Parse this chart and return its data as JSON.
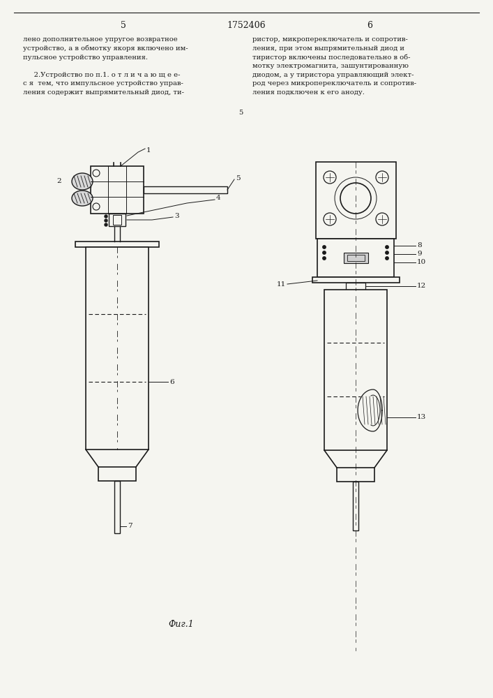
{
  "page_num_left": "5",
  "patent_num": "1752406",
  "page_num_right": "6",
  "text_left": "лено дополнительное упругое возвратное\nустройство, а в обмотку якоря включено им-\nпульсное устройство управления.\n\n     2.Устройство по п.1. о т л и ч а ю щ е е-\nс я  тем, что импульсное устройство управ-\nления содержит выпрямительный диод, ти-",
  "text_right": "ристор, микропереключатель и сопротив-\nления, при этом выпрямительный диод и\nтиристор включены последовательно в об-\nмотку электромагнита, зашунтированную\nдиодом, а у тиристора управляющий элект-\nрод через микропереключатель и сопротив-\nления подключен к его аноду.",
  "line_marker_5": "5",
  "fig_caption": "Фиг.1",
  "bg_color": "#f5f5f0",
  "line_color": "#1a1a1a",
  "text_color": "#1a1a1a"
}
